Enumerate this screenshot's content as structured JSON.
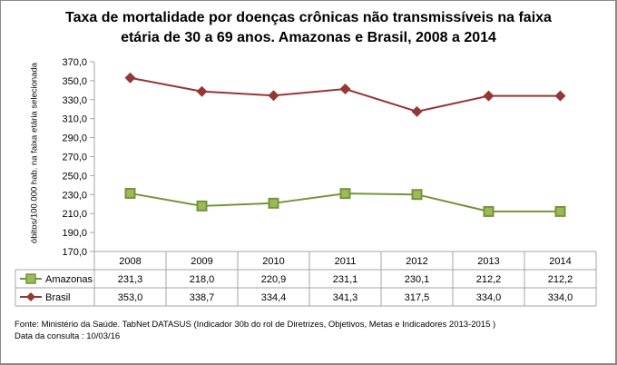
{
  "chart_data": {
    "type": "line",
    "title": "Taxa de mortalidade por doenças crônicas não transmissíveis na faixa etária de 30 a 69 anos. Amazonas e Brasil, 2008 a 2014",
    "title_lines": [
      "Taxa de mortalidade por doenças crônicas não transmissíveis na faixa",
      "etária de 30 a  69 anos. Amazonas e Brasil, 2008 a 2014"
    ],
    "xlabel": "",
    "ylabel": "óbitos/100.000 hab. na faixa etária selecionada",
    "categories": [
      "2008",
      "2009",
      "2010",
      "2011",
      "2012",
      "2013",
      "2014"
    ],
    "ylim": [
      170,
      370
    ],
    "yticks": [
      "370,0",
      "350,0",
      "330,0",
      "310,0",
      "290,0",
      "270,0",
      "250,0",
      "230,0",
      "210,0",
      "190,0",
      "170,0"
    ],
    "grid": false,
    "legend": "data-table-below",
    "series": [
      {
        "name": "Amazonas",
        "marker": "square",
        "color": "#77933c",
        "fill": "#9bbb59",
        "values": [
          231.3,
          218.0,
          220.9,
          231.1,
          230.1,
          212.2,
          212.2
        ],
        "labels": [
          "231,3",
          "218,0",
          "220,9",
          "231,1",
          "230,1",
          "212,2",
          "212,2"
        ]
      },
      {
        "name": "Brasil",
        "marker": "diamond",
        "color": "#953735",
        "fill": "#953735",
        "values": [
          353.0,
          338.7,
          334.4,
          341.3,
          317.5,
          334.0,
          334.0
        ],
        "labels": [
          "353,0",
          "338,7",
          "334,4",
          "341,3",
          "317,5",
          "334,0",
          "334,0"
        ]
      }
    ]
  },
  "footer": {
    "source": "Fonte: Ministério da Saúde. TabNet DATASUS (Indicador 30b do rol de Diretrizes, Objetivos, Metas e Indicadores 2013-2015 )",
    "date": "Data da consulta : 10/03/16"
  }
}
